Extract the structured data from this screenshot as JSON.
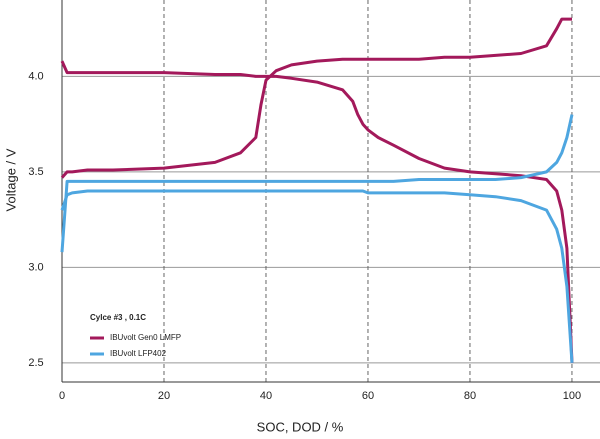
{
  "chart_data": {
    "type": "line",
    "x_label": "SOC, DOD / %",
    "y_label": "Voltage / V",
    "legend_title": "Cylce #3 , 0.1C",
    "legend_position": "lower left",
    "xlim": [
      0,
      105.5
    ],
    "ylim": [
      2.4,
      4.4
    ],
    "xticks": [
      0,
      20,
      40,
      60,
      80,
      100
    ],
    "yticks": [
      {
        "value": 2.5,
        "label": "2.5"
      },
      {
        "value": 3.0,
        "label": "3.0"
      },
      {
        "value": 3.5,
        "label": "3.5"
      },
      {
        "value": 4.0,
        "label": "4.0"
      }
    ],
    "grid": true,
    "x": [
      0,
      1,
      2,
      5,
      10,
      20,
      30,
      35,
      38,
      39,
      40,
      42,
      45,
      50,
      55,
      57,
      58,
      59,
      60,
      62,
      65,
      70,
      75,
      80,
      85,
      90,
      95,
      97,
      98,
      99,
      100
    ],
    "series": [
      {
        "name": "IBUvolt Gen0 LMFP",
        "color": "#a3195b",
        "charge": [
          3.47,
          3.5,
          3.5,
          3.51,
          3.51,
          3.52,
          3.55,
          3.6,
          3.68,
          3.85,
          3.98,
          4.03,
          4.06,
          4.08,
          4.09,
          4.09,
          4.09,
          4.09,
          4.09,
          4.09,
          4.09,
          4.09,
          4.1,
          4.1,
          4.11,
          4.12,
          4.16,
          4.25,
          4.3,
          4.3,
          4.3
        ],
        "discharge": [
          4.08,
          4.02,
          4.02,
          4.02,
          4.02,
          4.02,
          4.01,
          4.01,
          4.0,
          4.0,
          4.0,
          4.0,
          3.99,
          3.97,
          3.93,
          3.87,
          3.8,
          3.75,
          3.72,
          3.68,
          3.64,
          3.57,
          3.52,
          3.5,
          3.49,
          3.48,
          3.46,
          3.4,
          3.3,
          3.1,
          2.5
        ]
      },
      {
        "name": "IBUvolt LFP402",
        "color": "#4ea6e0",
        "charge": [
          3.08,
          3.45,
          3.45,
          3.45,
          3.45,
          3.45,
          3.45,
          3.45,
          3.45,
          3.45,
          3.45,
          3.45,
          3.45,
          3.45,
          3.45,
          3.45,
          3.45,
          3.45,
          3.45,
          3.45,
          3.45,
          3.46,
          3.46,
          3.46,
          3.46,
          3.47,
          3.5,
          3.55,
          3.6,
          3.68,
          3.8
        ],
        "discharge": [
          3.3,
          3.38,
          3.39,
          3.4,
          3.4,
          3.4,
          3.4,
          3.4,
          3.4,
          3.4,
          3.4,
          3.4,
          3.4,
          3.4,
          3.4,
          3.4,
          3.4,
          3.4,
          3.39,
          3.39,
          3.39,
          3.39,
          3.39,
          3.38,
          3.37,
          3.35,
          3.3,
          3.2,
          3.1,
          2.9,
          2.5
        ]
      }
    ]
  }
}
